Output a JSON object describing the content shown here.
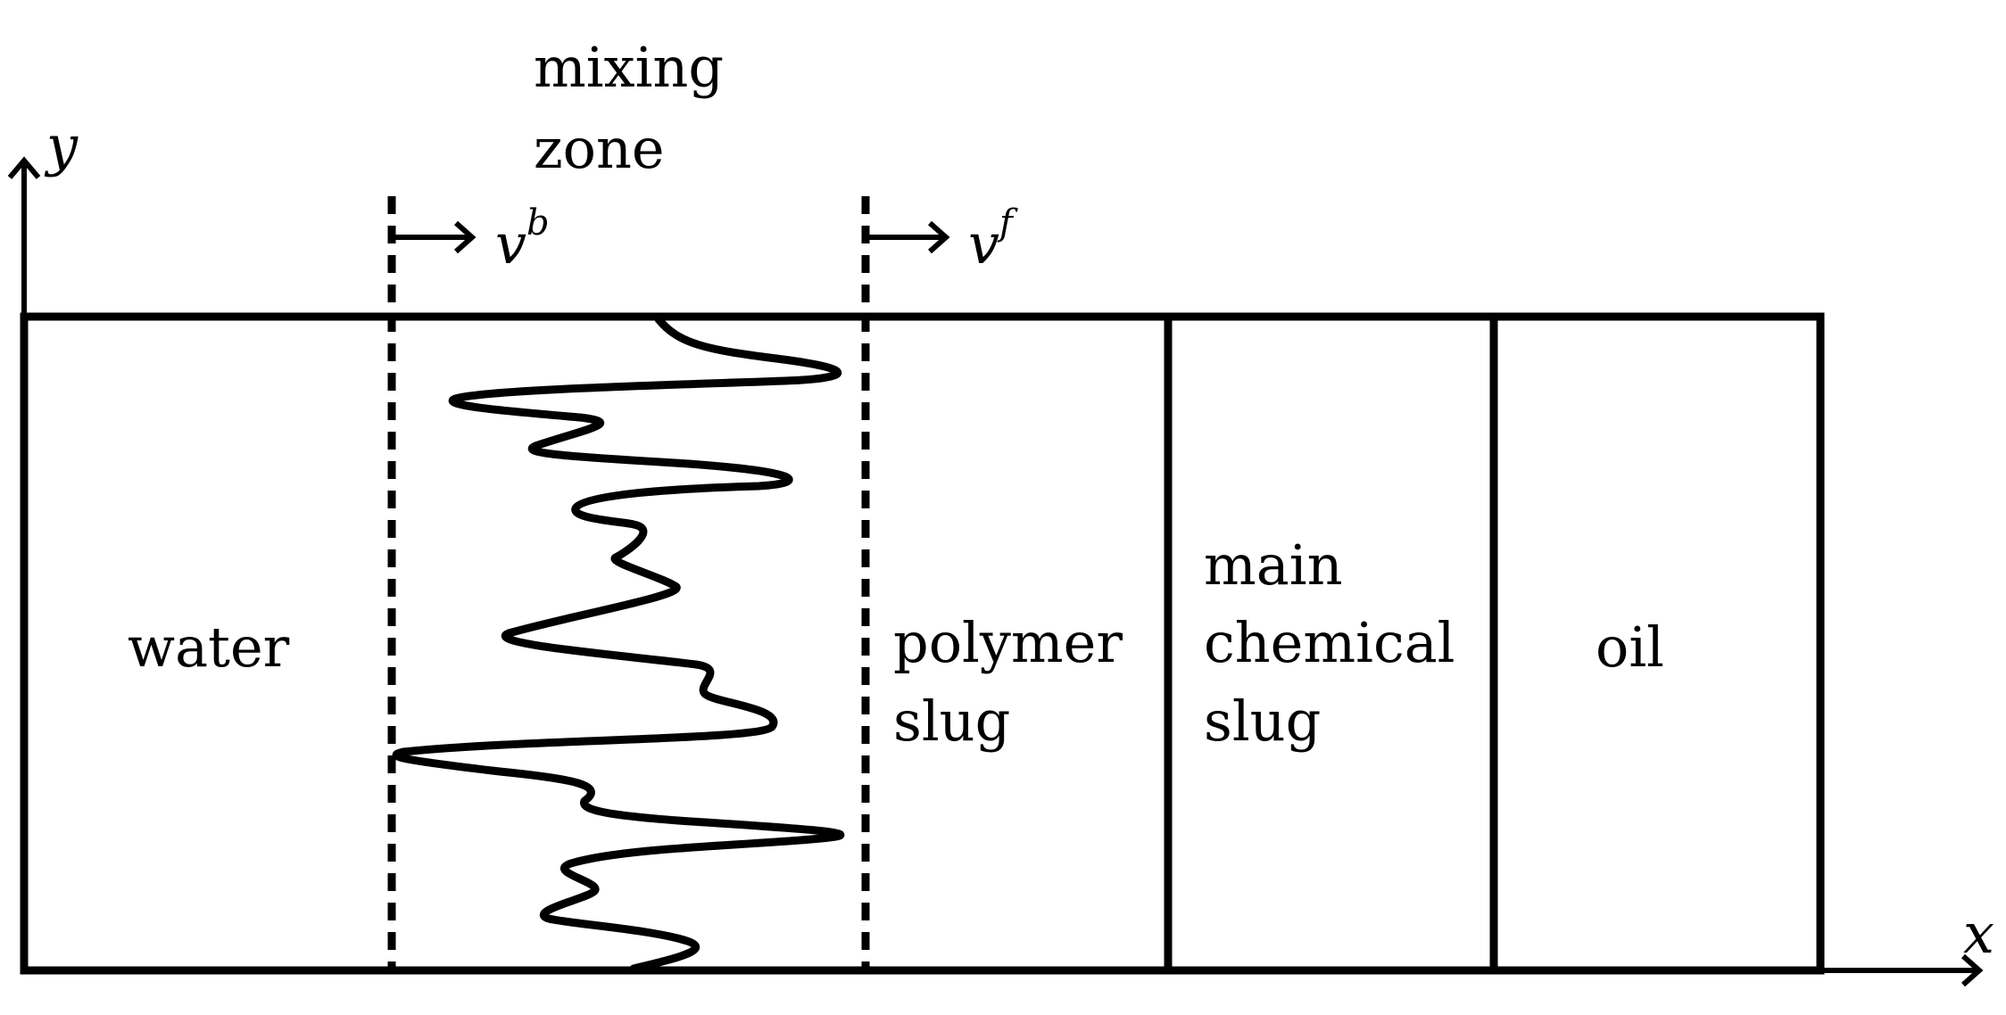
{
  "axes": {
    "x_label": "x",
    "y_label": "y"
  },
  "regions": {
    "water": "water",
    "polymer": [
      "polymer",
      "slug"
    ],
    "main_chemical": [
      "main",
      "chemical",
      "slug"
    ],
    "oil": "oil"
  },
  "mixing_zone": {
    "label": [
      "mixing",
      "zone"
    ],
    "back_velocity": {
      "symbol": "v",
      "superscript": "b"
    },
    "front_velocity": {
      "symbol": "v",
      "superscript": "f"
    }
  }
}
